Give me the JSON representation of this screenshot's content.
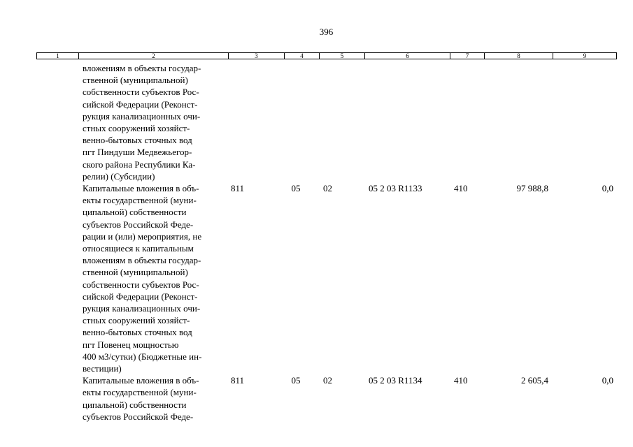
{
  "page_number": "396",
  "table": {
    "header": [
      "1",
      "2",
      "3",
      "4",
      "5",
      "6",
      "7",
      "8",
      "9"
    ],
    "rows": [
      {
        "description": [
          "вложениям в объекты государ-",
          "ственной (муниципальной)",
          "собственности субъектов Рос-",
          "сийской Федерации (Реконст-",
          "рукция канализационных очи-",
          "стных сооружений хозяйст-",
          "венно-бытовых сточных вод",
          "пгт Пиндуши Медвежьегор-",
          "ского района Республики Ка-",
          "релии) (Субсидии)"
        ]
      },
      {
        "description": [
          "Капитальные вложения в объ-",
          "екты государственной (муни-",
          "ципальной) собственности",
          "субъектов Российской Феде-",
          "рации и (или) мероприятия, не",
          "относящиеся к капитальным",
          "вложениям в объекты государ-",
          "ственной (муниципальной)",
          "собственности субъектов Рос-",
          "сийской Федерации (Реконст-",
          "рукция канализационных очи-",
          "стных сооружений хозяйст-",
          "венно-бытовых сточных вод",
          "пгт Повенец мощностью",
          "400 м3/сутки) (Бюджетные ин-",
          "вестиции)"
        ],
        "cells": [
          "811",
          "05",
          "02",
          "05 2 03 R1133",
          "410",
          "97 988,8",
          "0,0"
        ]
      },
      {
        "description": [
          "Капитальные вложения в объ-",
          "екты государственной (муни-",
          "ципальной) собственности",
          "субъектов Российской Феде-"
        ],
        "cells": [
          "811",
          "05",
          "02",
          "05 2 03 R1134",
          "410",
          "2 605,4",
          "0,0"
        ]
      }
    ]
  }
}
